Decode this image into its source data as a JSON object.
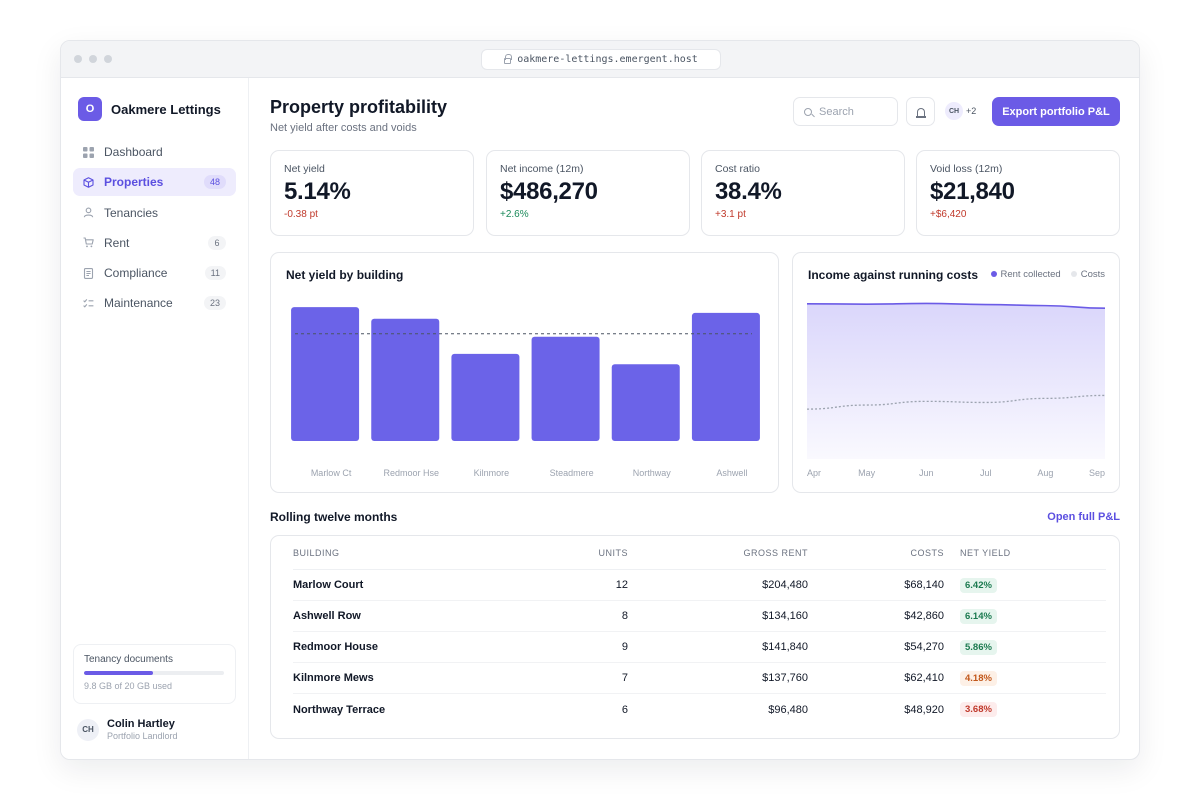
{
  "browser": {
    "url": "oakmere-lettings.emergent.host"
  },
  "brand": {
    "initial": "O",
    "name": "Oakmere Lettings"
  },
  "sidebar": {
    "items": [
      {
        "label": "Dashboard",
        "icon": "dashboard-icon",
        "count": ""
      },
      {
        "label": "Properties",
        "icon": "cube-icon",
        "count": "48"
      },
      {
        "label": "Tenancies",
        "icon": "person-icon",
        "count": ""
      },
      {
        "label": "Rent",
        "icon": "cart-icon",
        "count": "6"
      },
      {
        "label": "Compliance",
        "icon": "document-icon",
        "count": "11"
      },
      {
        "label": "Maintenance",
        "icon": "checklist-icon",
        "count": "23"
      }
    ],
    "active": "Properties",
    "storage": {
      "title": "Tenancy documents",
      "used_text": "9.8 GB of 20 GB used",
      "fraction": 0.49
    },
    "user": {
      "initials": "CH",
      "name": "Colin Hartley",
      "role": "Portfolio Landlord"
    }
  },
  "header": {
    "title": "Property profitability",
    "subtitle": "Net yield after costs and voids",
    "search_placeholder": "Search",
    "avatar_initials": "CH",
    "more_count": "+2",
    "export_label": "Export portfolio P&L"
  },
  "kpis": [
    {
      "label": "Net yield",
      "value": "5.14%",
      "delta": "-0.38 pt",
      "tone": "neg"
    },
    {
      "label": "Net income (12m)",
      "value": "$486,270",
      "delta": "+2.6%",
      "tone": "pos"
    },
    {
      "label": "Cost ratio",
      "value": "38.4%",
      "delta": "+3.1 pt",
      "tone": "neg"
    },
    {
      "label": "Void loss (12m)",
      "value": "$21,840",
      "delta": "+$6,420",
      "tone": "neg"
    }
  ],
  "yield_chart": {
    "title": "Net yield by building"
  },
  "income_chart": {
    "title": "Income against running costs",
    "legend": [
      "Rent collected",
      "Costs"
    ]
  },
  "chart_data": [
    {
      "type": "bar",
      "title": "Net yield by building",
      "categories": [
        "Marlow Ct",
        "Redmoor Hse",
        "Kilnmore",
        "Steadmere",
        "Northway",
        "Ashwell"
      ],
      "values": [
        6.42,
        5.86,
        4.18,
        5.0,
        3.68,
        6.14
      ],
      "reference_line": 5.14,
      "ylim": [
        0,
        7
      ],
      "grid": false,
      "color": "#6b63e8"
    },
    {
      "type": "area",
      "title": "Income against running costs",
      "categories": [
        "Apr",
        "May",
        "Jun",
        "Jul",
        "Aug",
        "Sep"
      ],
      "series": [
        {
          "name": "Rent collected",
          "values": [
            42.0,
            41.9,
            42.1,
            41.8,
            41.5,
            40.8
          ],
          "color": "#6b5be6"
        },
        {
          "name": "Costs",
          "values": [
            13.5,
            14.6,
            15.6,
            15.3,
            16.4,
            17.2
          ],
          "color": "#9ca3af"
        }
      ],
      "ylim": [
        0,
        46
      ],
      "legend": "top-right",
      "grid": false
    }
  ],
  "table": {
    "section_title": "Rolling twelve months",
    "link": "Open full P&L",
    "headers": [
      "Building",
      "Units",
      "Gross rent",
      "Costs",
      "Net yield"
    ],
    "rows": [
      {
        "building": "Marlow Court",
        "units": "12",
        "gross": "$204,480",
        "costs": "$68,140",
        "yield": "6.42%",
        "tone": "g"
      },
      {
        "building": "Ashwell Row",
        "units": "8",
        "gross": "$134,160",
        "costs": "$42,860",
        "yield": "6.14%",
        "tone": "g"
      },
      {
        "building": "Redmoor House",
        "units": "9",
        "gross": "$141,840",
        "costs": "$54,270",
        "yield": "5.86%",
        "tone": "g"
      },
      {
        "building": "Kilnmore Mews",
        "units": "7",
        "gross": "$137,760",
        "costs": "$62,410",
        "yield": "4.18%",
        "tone": "o"
      },
      {
        "building": "Northway Terrace",
        "units": "6",
        "gross": "$96,480",
        "costs": "$48,920",
        "yield": "3.68%",
        "tone": "r"
      }
    ]
  }
}
